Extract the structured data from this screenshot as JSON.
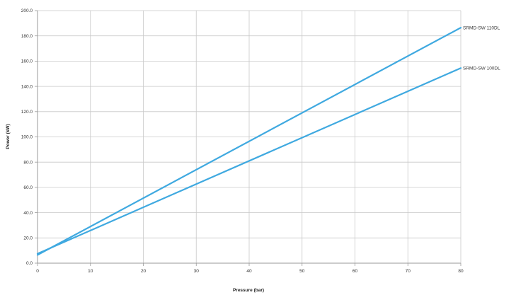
{
  "chart_data": {
    "type": "line",
    "title": "",
    "xlabel": "Pressure (bar)",
    "ylabel": "Power (kW)",
    "xlim": [
      0,
      80
    ],
    "ylim": [
      0,
      200
    ],
    "x_ticks": [
      0,
      10,
      20,
      30,
      40,
      50,
      60,
      70,
      80
    ],
    "y_ticks": [
      0,
      20,
      40,
      60,
      80,
      100,
      120,
      140,
      160,
      180,
      200
    ],
    "x_tick_labels": [
      "0",
      "10",
      "20",
      "30",
      "40",
      "50",
      "60",
      "70",
      "80"
    ],
    "y_tick_labels": [
      "0.0",
      "20.0",
      "40.0",
      "60.0",
      "80.0",
      "100.0",
      "120.0",
      "140.0",
      "160.0",
      "180.0",
      "200.0"
    ],
    "grid": true,
    "legend": "none (series labelled at line ends, right)",
    "series": [
      {
        "name": "SRMD-SW 110DL",
        "color": "#3fa9e0",
        "x": [
          0,
          80
        ],
        "y": [
          6.5,
          186.5
        ]
      },
      {
        "name": "SRMD-SW 100DL",
        "color": "#3fa9e0",
        "x": [
          0,
          80
        ],
        "y": [
          7.5,
          154.5
        ]
      }
    ]
  }
}
